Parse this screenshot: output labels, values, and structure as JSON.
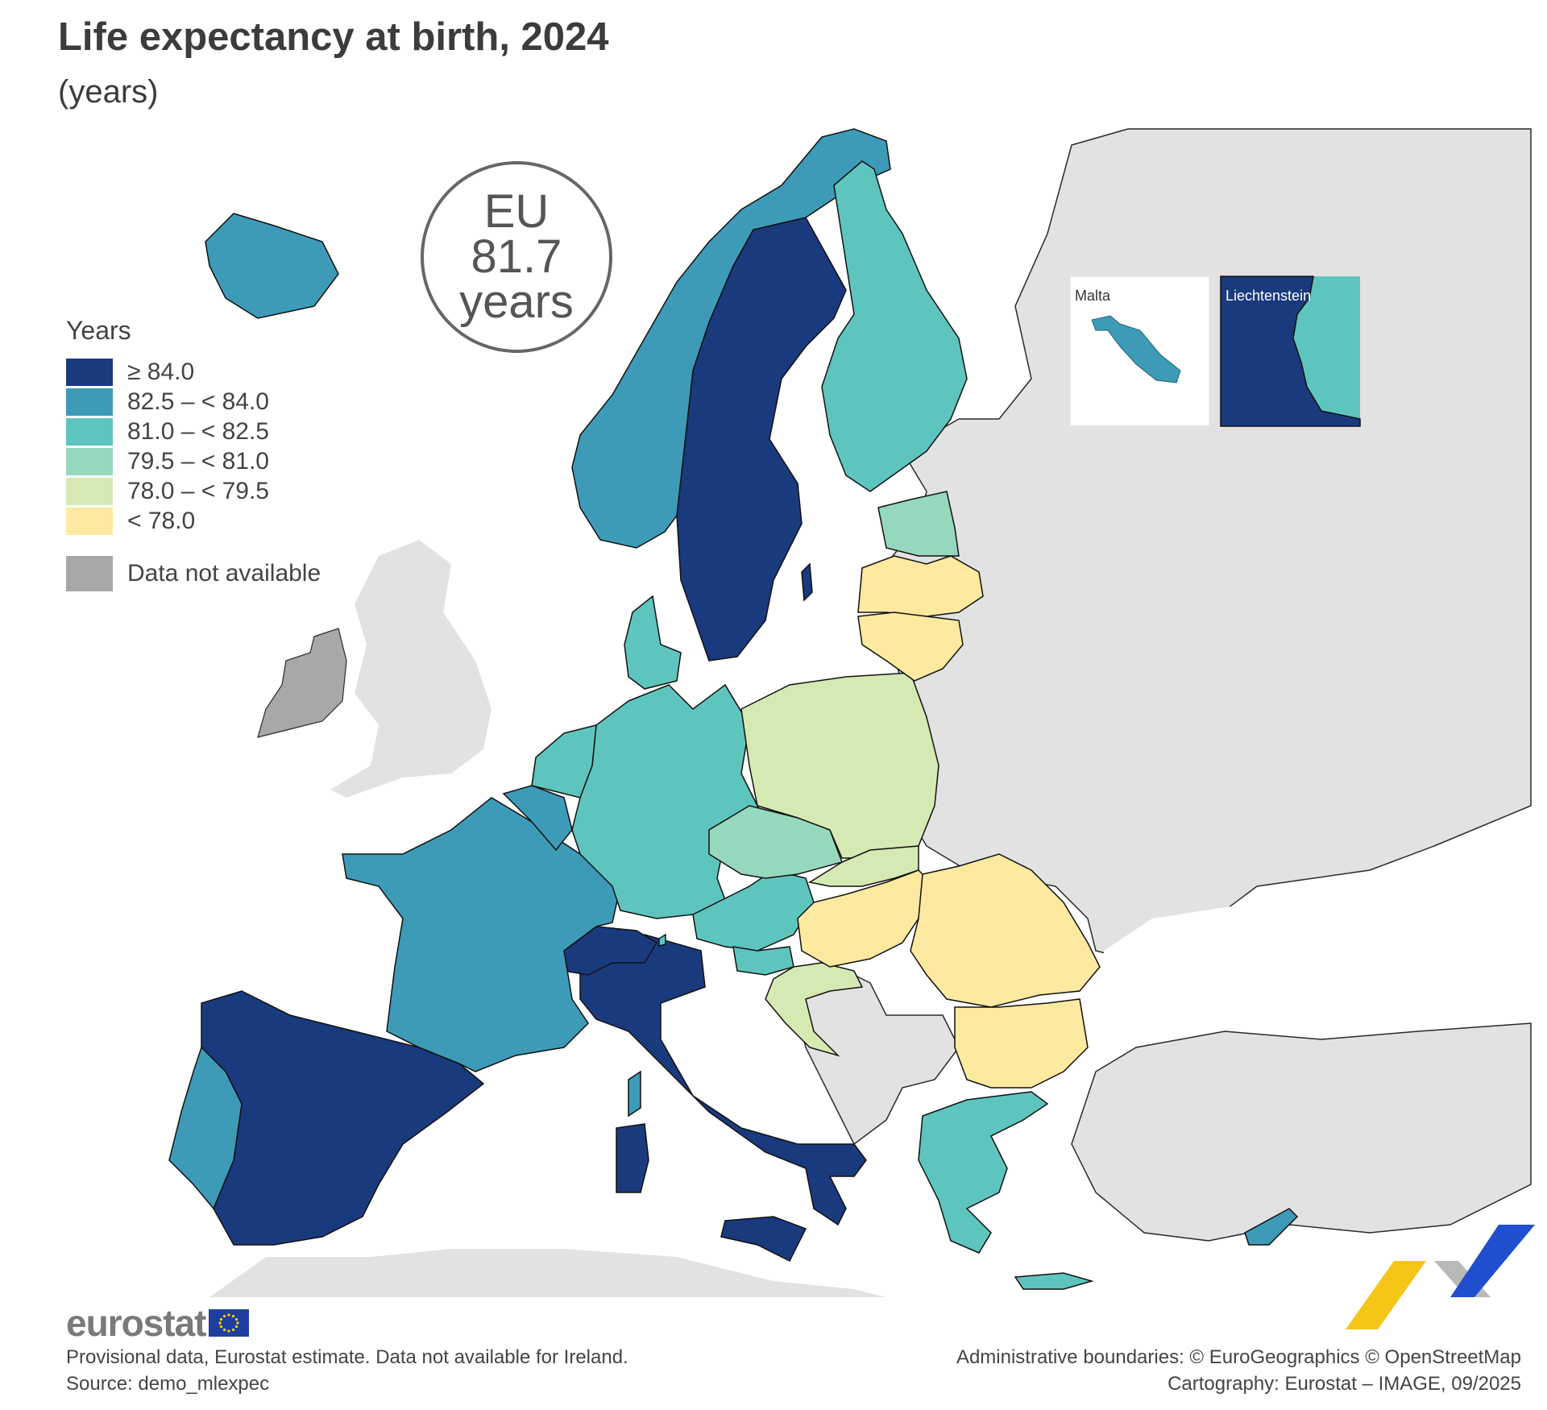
{
  "title": "Life expectancy at birth, 2024",
  "subtitle": "(years)",
  "eu_badge": {
    "line1": "EU",
    "line2": "81.7",
    "line3": "years"
  },
  "legend": {
    "title": "Years",
    "items": [
      {
        "label": "≥ 84.0",
        "color": "#1a3a7e"
      },
      {
        "label": "82.5 – < 84.0",
        "color": "#3d9bb8"
      },
      {
        "label": "81.0 – < 82.5",
        "color": "#5ec5be"
      },
      {
        "label": "79.5 – < 81.0",
        "color": "#96d8bc"
      },
      {
        "label": "78.0 – < 79.5",
        "color": "#d5eab2"
      },
      {
        "label": "< 78.0",
        "color": "#fde9a0"
      }
    ],
    "na_label": "Data not available",
    "na_color": "#a8a8a8"
  },
  "insets": {
    "malta": "Malta",
    "liechtenstein": "Liechtenstein"
  },
  "chart_data": {
    "type": "choropleth",
    "title": "Life expectancy at birth, 2024",
    "unit": "years",
    "eu_value": 81.7,
    "classes": [
      "≥ 84.0",
      "82.5 – < 84.0",
      "81.0 – < 82.5",
      "79.5 – < 81.0",
      "78.0 – < 79.5",
      "< 78.0"
    ],
    "regions": [
      {
        "name": "Spain",
        "class": "≥ 84.0"
      },
      {
        "name": "Italy",
        "class": "≥ 84.0"
      },
      {
        "name": "Sweden",
        "class": "≥ 84.0"
      },
      {
        "name": "Switzerland",
        "class": "≥ 84.0"
      },
      {
        "name": "Liechtenstein",
        "class": "≥ 84.0"
      },
      {
        "name": "Norway",
        "class": "82.5 – < 84.0"
      },
      {
        "name": "Iceland",
        "class": "82.5 – < 84.0"
      },
      {
        "name": "France",
        "class": "82.5 – < 84.0"
      },
      {
        "name": "Portugal",
        "class": "82.5 – < 84.0"
      },
      {
        "name": "Belgium",
        "class": "82.5 – < 84.0"
      },
      {
        "name": "Luxembourg",
        "class": "82.5 – < 84.0"
      },
      {
        "name": "Malta",
        "class": "82.5 – < 84.0"
      },
      {
        "name": "Cyprus",
        "class": "82.5 – < 84.0"
      },
      {
        "name": "Finland",
        "class": "81.0 – < 82.5"
      },
      {
        "name": "Denmark",
        "class": "81.0 – < 82.5"
      },
      {
        "name": "Netherlands",
        "class": "81.0 – < 82.5"
      },
      {
        "name": "Germany",
        "class": "81.0 – < 82.5"
      },
      {
        "name": "Austria",
        "class": "81.0 – < 82.5"
      },
      {
        "name": "Slovenia",
        "class": "81.0 – < 82.5"
      },
      {
        "name": "Greece",
        "class": "81.0 – < 82.5"
      },
      {
        "name": "Czechia",
        "class": "79.5 – < 81.0"
      },
      {
        "name": "Estonia",
        "class": "79.5 – < 81.0"
      },
      {
        "name": "Poland",
        "class": "78.0 – < 79.5"
      },
      {
        "name": "Slovakia",
        "class": "78.0 – < 79.5"
      },
      {
        "name": "Croatia",
        "class": "78.0 – < 79.5"
      },
      {
        "name": "Latvia",
        "class": "< 78.0"
      },
      {
        "name": "Lithuania",
        "class": "< 78.0"
      },
      {
        "name": "Hungary",
        "class": "< 78.0"
      },
      {
        "name": "Romania",
        "class": "< 78.0"
      },
      {
        "name": "Bulgaria",
        "class": "< 78.0"
      },
      {
        "name": "Ireland",
        "class": "Data not available"
      }
    ]
  },
  "logo": "eurostat",
  "footer": {
    "left_line1": "Provisional data, Eurostat estimate. Data not available for Ireland.",
    "left_line2": "Source: demo_mlexpec",
    "right_line1": "Administrative boundaries: © EuroGeographics © OpenStreetMap",
    "right_line2": "Cartography: Eurostat – IMAGE, 09/2025"
  }
}
